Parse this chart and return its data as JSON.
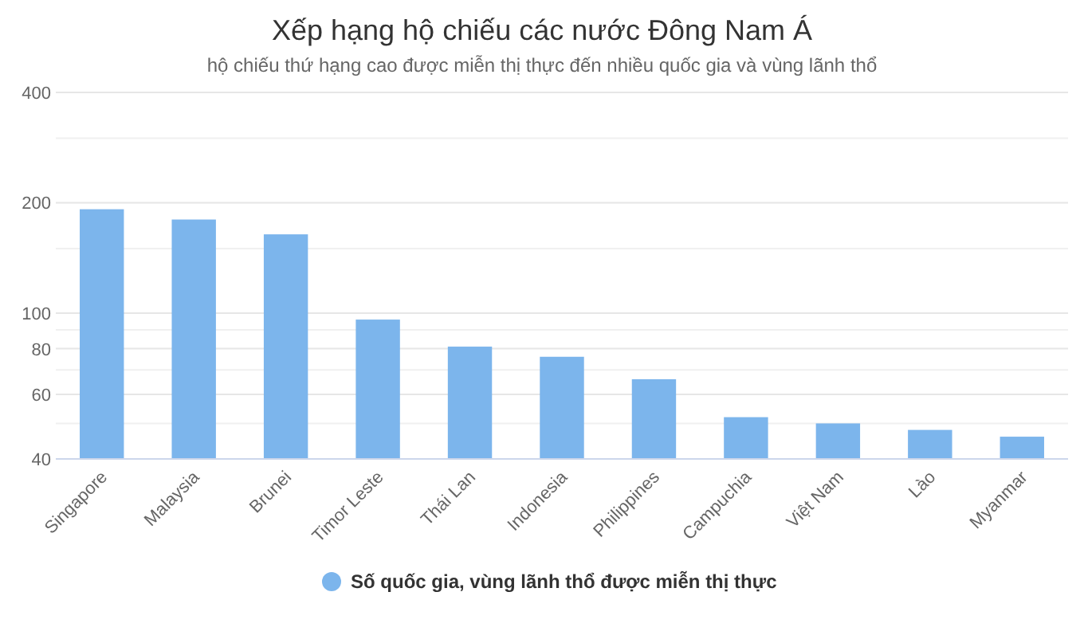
{
  "chart_data": {
    "type": "bar",
    "title": "Xếp hạng hộ chiếu các nước Đông Nam Á",
    "subtitle": "hộ chiếu thứ hạng cao được miễn thị thực đến nhiều quốc gia và vùng lãnh thổ",
    "categories": [
      "Singapore",
      "Malaysia",
      "Brunei",
      "Timor Leste",
      "Thái Lan",
      "Indonesia",
      "Philippines",
      "Campuchia",
      "Việt Nam",
      "Lào",
      "Myanmar"
    ],
    "series": [
      {
        "name": "Số quốc gia, vùng lãnh thổ được miễn thị thực",
        "color": "#7cb5ec",
        "values": [
          192,
          180,
          164,
          96,
          81,
          76,
          66,
          52,
          50,
          48,
          46
        ]
      }
    ],
    "log": true,
    "ylim": [
      40,
      400
    ],
    "yticks": [
      40,
      {
        "value": 50,
        "label": null
      },
      60,
      {
        "value": 70,
        "label": null
      },
      80,
      {
        "value": 90,
        "label": null
      },
      100,
      {
        "value": 150,
        "label": null
      },
      200,
      {
        "value": 300,
        "label": null
      },
      400
    ],
    "grid": "y",
    "legend": "bottom"
  }
}
